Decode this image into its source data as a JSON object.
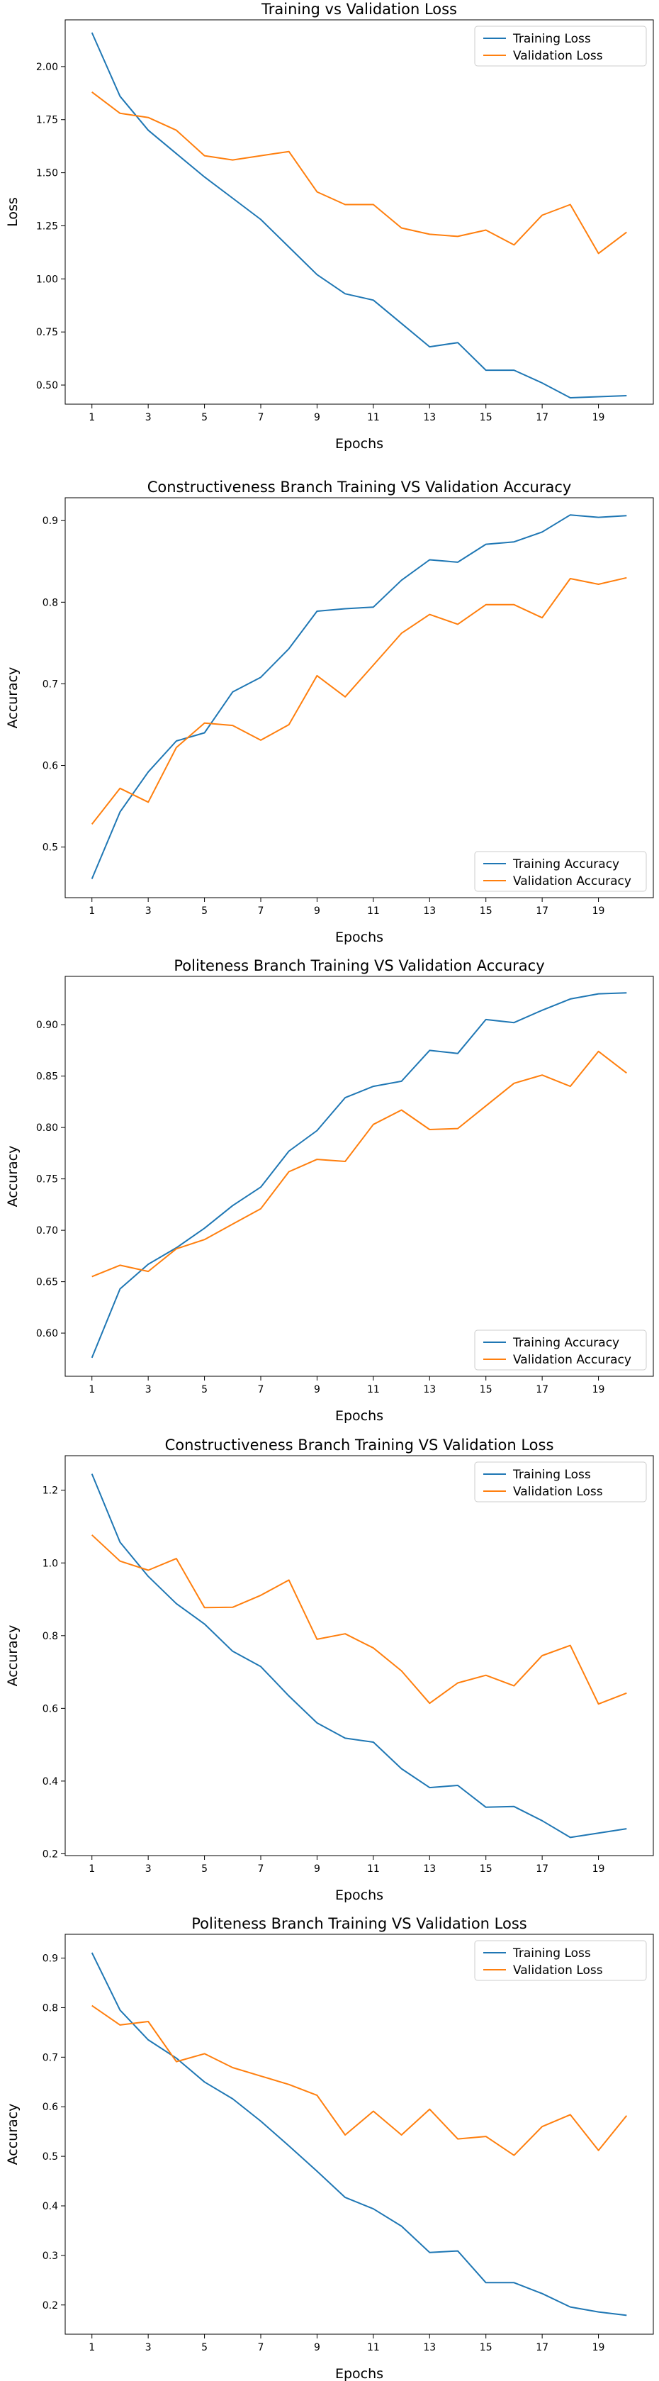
{
  "colors": {
    "training": "#1f77b4",
    "validation": "#ff7f0e"
  },
  "chart_data": [
    {
      "type": "line",
      "title": "Training vs Validation Loss",
      "xlabel": "Epochs",
      "ylabel": "Loss",
      "x": [
        1,
        2,
        3,
        4,
        5,
        6,
        7,
        8,
        9,
        10,
        11,
        12,
        13,
        14,
        15,
        16,
        17,
        18,
        19,
        20
      ],
      "xticks": [
        1,
        3,
        5,
        7,
        9,
        11,
        13,
        15,
        17,
        19
      ],
      "xlim": [
        0.05,
        20.95
      ],
      "ylim": [
        0.41,
        2.22
      ],
      "yticks": [
        0.5,
        0.75,
        1.0,
        1.25,
        1.5,
        1.75,
        2.0
      ],
      "ytick_labels": [
        "0.50",
        "0.75",
        "1.00",
        "1.25",
        "1.50",
        "1.75",
        "2.00"
      ],
      "legend": "top-right",
      "series": [
        {
          "name": "Training Loss",
          "color": "training",
          "values": [
            2.16,
            1.86,
            1.7,
            1.59,
            1.48,
            1.38,
            1.28,
            1.15,
            1.02,
            0.93,
            0.9,
            0.79,
            0.68,
            0.7,
            0.57,
            0.57,
            0.51,
            0.44,
            0.445,
            0.45
          ]
        },
        {
          "name": "Validation Loss",
          "color": "validation",
          "values": [
            1.88,
            1.78,
            1.76,
            1.7,
            1.58,
            1.56,
            1.58,
            1.6,
            1.41,
            1.35,
            1.35,
            1.24,
            1.21,
            1.2,
            1.23,
            1.16,
            1.3,
            1.35,
            1.12,
            1.22
          ]
        }
      ]
    },
    {
      "type": "line",
      "title": "Constructiveness Branch Training VS Validation Accuracy",
      "xlabel": "Epochs",
      "ylabel": "Accuracy",
      "x": [
        1,
        2,
        3,
        4,
        5,
        6,
        7,
        8,
        9,
        10,
        11,
        12,
        13,
        14,
        15,
        16,
        17,
        18,
        19,
        20
      ],
      "xticks": [
        1,
        3,
        5,
        7,
        9,
        11,
        13,
        15,
        17,
        19
      ],
      "xlim": [
        0.05,
        20.95
      ],
      "ylim": [
        0.438,
        0.928
      ],
      "yticks": [
        0.5,
        0.6,
        0.7,
        0.8,
        0.9
      ],
      "ytick_labels": [
        "0.5",
        "0.6",
        "0.7",
        "0.8",
        "0.9"
      ],
      "legend": "bottom-right",
      "series": [
        {
          "name": "Training Accuracy",
          "color": "training",
          "values": [
            0.461,
            0.543,
            0.592,
            0.63,
            0.64,
            0.69,
            0.708,
            0.743,
            0.789,
            0.792,
            0.794,
            0.827,
            0.852,
            0.849,
            0.871,
            0.874,
            0.886,
            0.907,
            0.904,
            0.906
          ]
        },
        {
          "name": "Validation Accuracy",
          "color": "validation",
          "values": [
            0.528,
            0.572,
            0.555,
            0.622,
            0.652,
            0.649,
            0.631,
            0.65,
            0.71,
            0.684,
            0.723,
            0.762,
            0.785,
            0.773,
            0.797,
            0.797,
            0.781,
            0.829,
            0.822,
            0.83
          ]
        }
      ]
    },
    {
      "type": "line",
      "title": "Politeness Branch Training VS Validation Accuracy",
      "xlabel": "Epochs",
      "ylabel": "Accuracy",
      "x": [
        1,
        2,
        3,
        4,
        5,
        6,
        7,
        8,
        9,
        10,
        11,
        12,
        13,
        14,
        15,
        16,
        17,
        18,
        19,
        20
      ],
      "xticks": [
        1,
        3,
        5,
        7,
        9,
        11,
        13,
        15,
        17,
        19
      ],
      "xlim": [
        0.05,
        20.95
      ],
      "ylim": [
        0.558,
        0.947
      ],
      "yticks": [
        0.6,
        0.65,
        0.7,
        0.75,
        0.8,
        0.85,
        0.9
      ],
      "ytick_labels": [
        "0.60",
        "0.65",
        "0.70",
        "0.75",
        "0.80",
        "0.85",
        "0.90"
      ],
      "legend": "bottom-right",
      "series": [
        {
          "name": "Training Accuracy",
          "color": "training",
          "values": [
            0.576,
            0.643,
            0.667,
            0.683,
            0.702,
            0.724,
            0.742,
            0.777,
            0.797,
            0.829,
            0.84,
            0.845,
            0.875,
            0.872,
            0.905,
            0.902,
            0.914,
            0.925,
            0.93,
            0.931
          ]
        },
        {
          "name": "Validation Accuracy",
          "color": "validation",
          "values": [
            0.655,
            0.666,
            0.66,
            0.682,
            0.691,
            0.706,
            0.721,
            0.757,
            0.769,
            0.767,
            0.803,
            0.817,
            0.798,
            0.799,
            0.821,
            0.843,
            0.851,
            0.84,
            0.874,
            0.853
          ]
        }
      ]
    },
    {
      "type": "line",
      "title": "Constructiveness Branch Training VS Validation Loss",
      "xlabel": "Epochs",
      "ylabel": "Accuracy",
      "x": [
        1,
        2,
        3,
        4,
        5,
        6,
        7,
        8,
        9,
        10,
        11,
        12,
        13,
        14,
        15,
        16,
        17,
        18,
        19,
        20
      ],
      "xticks": [
        1,
        3,
        5,
        7,
        9,
        11,
        13,
        15,
        17,
        19
      ],
      "xlim": [
        0.05,
        20.95
      ],
      "ylim": [
        0.195,
        1.295
      ],
      "yticks": [
        0.2,
        0.4,
        0.6,
        0.8,
        1.0,
        1.2
      ],
      "ytick_labels": [
        "0.2",
        "0.4",
        "0.6",
        "0.8",
        "1.0",
        "1.2"
      ],
      "legend": "top-right",
      "series": [
        {
          "name": "Training Loss",
          "color": "training",
          "values": [
            1.245,
            1.057,
            0.963,
            0.888,
            0.832,
            0.757,
            0.715,
            0.634,
            0.56,
            0.518,
            0.507,
            0.434,
            0.382,
            0.388,
            0.328,
            0.33,
            0.291,
            0.245,
            0.257,
            0.269
          ]
        },
        {
          "name": "Validation Loss",
          "color": "validation",
          "values": [
            1.077,
            1.005,
            0.98,
            1.012,
            0.877,
            0.878,
            0.911,
            0.953,
            0.79,
            0.805,
            0.766,
            0.703,
            0.614,
            0.67,
            0.691,
            0.662,
            0.745,
            0.773,
            0.612,
            0.642
          ]
        }
      ]
    },
    {
      "type": "line",
      "title": "Politeness Branch Training VS Validation Loss",
      "xlabel": "Epochs",
      "ylabel": "Accuracy",
      "x": [
        1,
        2,
        3,
        4,
        5,
        6,
        7,
        8,
        9,
        10,
        11,
        12,
        13,
        14,
        15,
        16,
        17,
        18,
        19,
        20
      ],
      "xticks": [
        1,
        3,
        5,
        7,
        9,
        11,
        13,
        15,
        17,
        19
      ],
      "xlim": [
        0.05,
        20.95
      ],
      "ylim": [
        0.141,
        0.948
      ],
      "yticks": [
        0.2,
        0.3,
        0.4,
        0.5,
        0.6,
        0.7,
        0.8,
        0.9
      ],
      "ytick_labels": [
        "0.2",
        "0.3",
        "0.4",
        "0.5",
        "0.6",
        "0.7",
        "0.8",
        "0.9"
      ],
      "legend": "top-right",
      "series": [
        {
          "name": "Training Loss",
          "color": "training",
          "values": [
            0.911,
            0.795,
            0.735,
            0.698,
            0.65,
            0.616,
            0.571,
            0.521,
            0.47,
            0.417,
            0.394,
            0.359,
            0.306,
            0.309,
            0.245,
            0.245,
            0.223,
            0.196,
            0.186,
            0.179
          ]
        },
        {
          "name": "Validation Loss",
          "color": "validation",
          "values": [
            0.804,
            0.765,
            0.772,
            0.691,
            0.707,
            0.679,
            0.662,
            0.645,
            0.623,
            0.543,
            0.591,
            0.543,
            0.595,
            0.535,
            0.54,
            0.502,
            0.56,
            0.584,
            0.512,
            0.582
          ]
        }
      ]
    }
  ]
}
